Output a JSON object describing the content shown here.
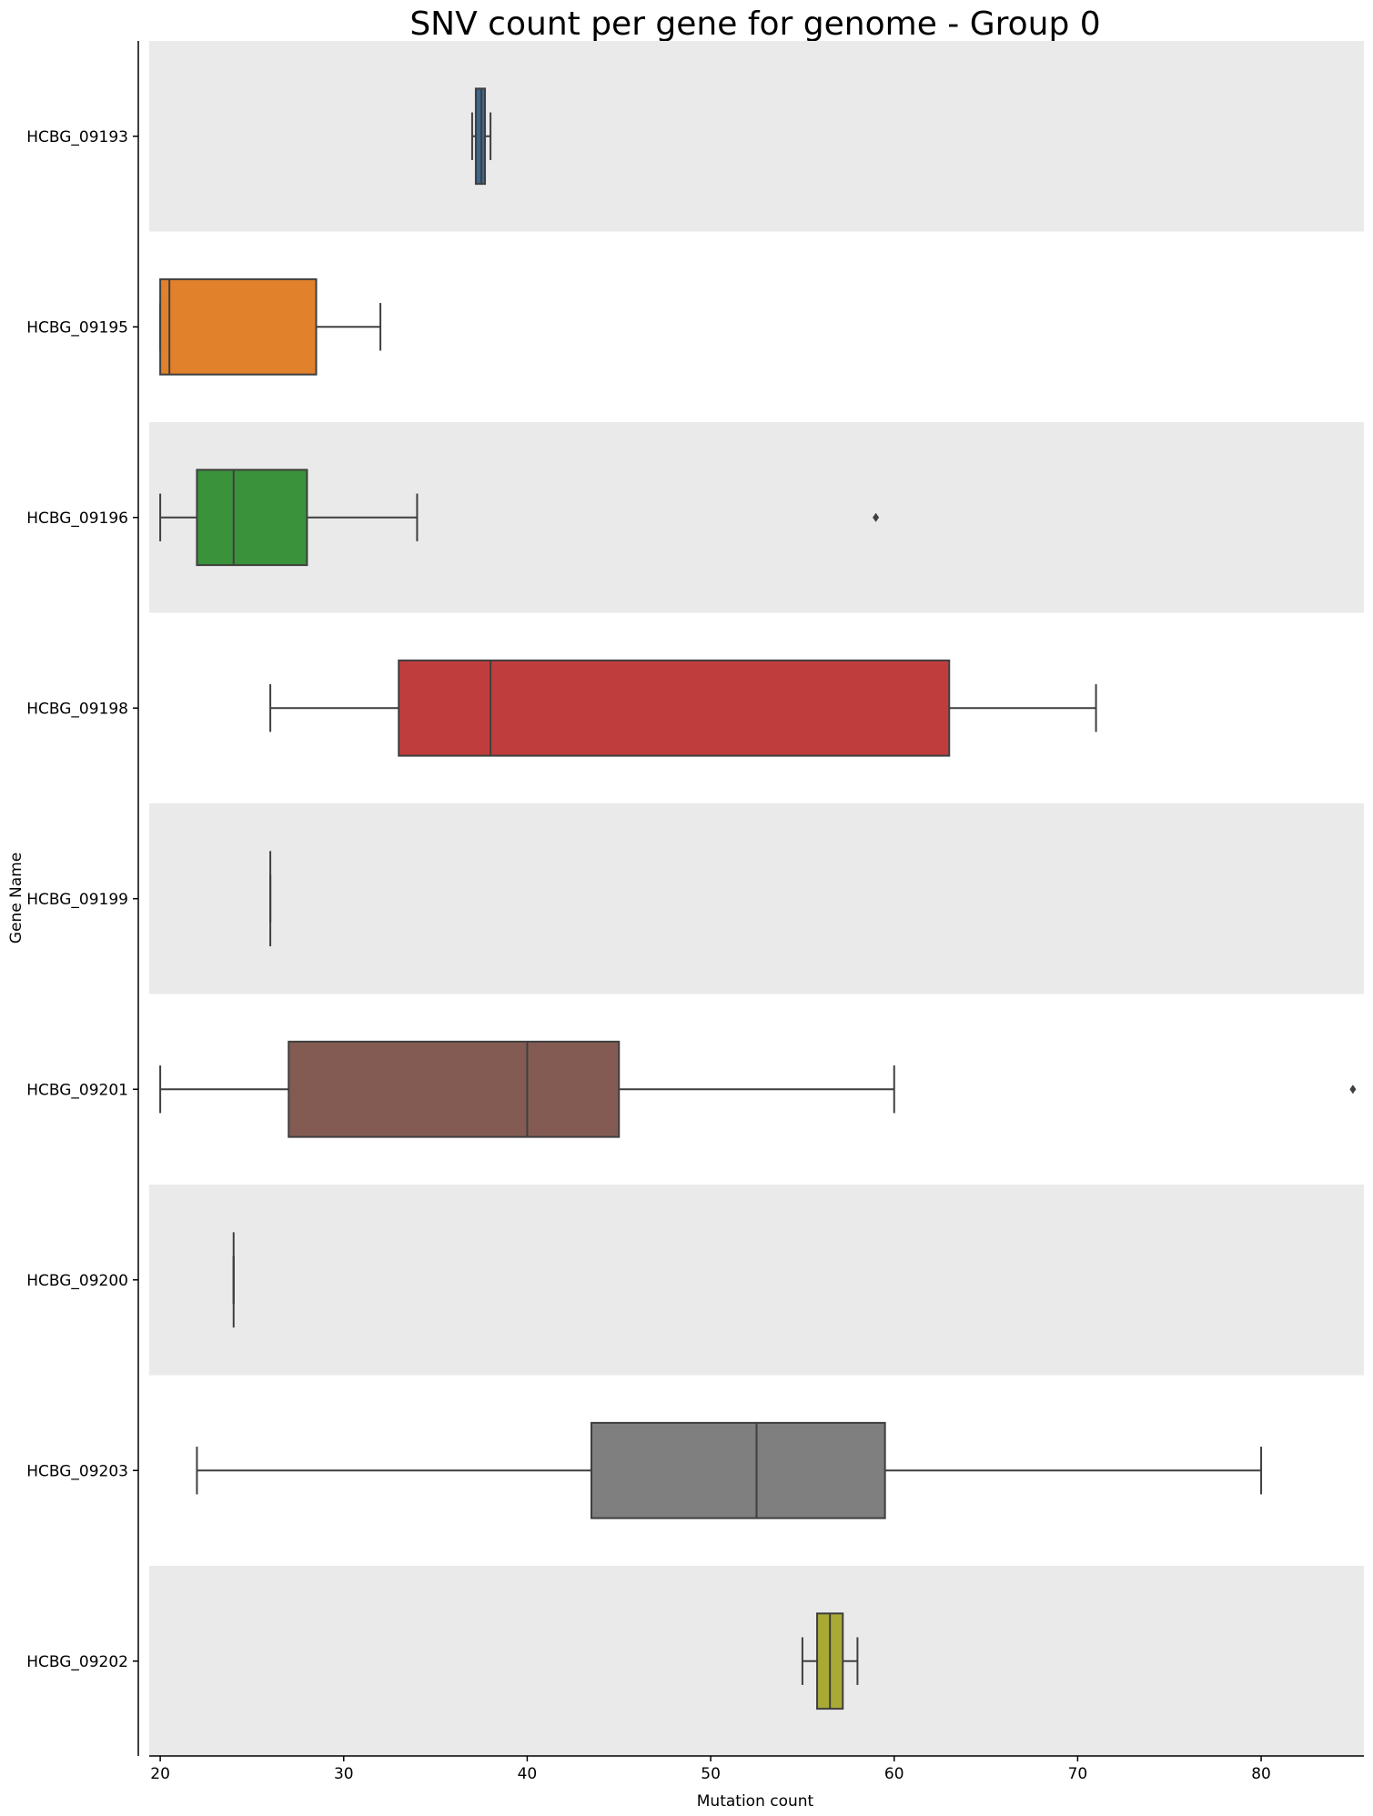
{
  "chart_data": {
    "type": "boxplot",
    "orientation": "horizontal",
    "title": "SNV count per gene for genome - Group 0",
    "xlabel": "Mutation count",
    "ylabel": "Gene Name",
    "xlim": [
      19.4,
      85.6
    ],
    "xticks": [
      20,
      30,
      40,
      50,
      60,
      70,
      80
    ],
    "grid": false,
    "band_colors": [
      "#eaeaea",
      "#ffffff"
    ],
    "line_color": "#3f3f3f",
    "boxes": [
      {
        "label": "HCBG_09193",
        "color": "#3a6791",
        "whislo": 37.0,
        "q1": 37.2,
        "med": 37.5,
        "q3": 37.7,
        "whishi": 38.0,
        "fliers": []
      },
      {
        "label": "HCBG_09195",
        "color": "#e1812c",
        "whislo": 20.0,
        "q1": 20.0,
        "med": 20.5,
        "q3": 28.5,
        "whishi": 32.0,
        "fliers": []
      },
      {
        "label": "HCBG_09196",
        "color": "#3a923a",
        "whislo": 20.0,
        "q1": 22.0,
        "med": 24.0,
        "q3": 28.0,
        "whishi": 34.0,
        "fliers": [
          59.0
        ]
      },
      {
        "label": "HCBG_09198",
        "color": "#c03d3e",
        "whislo": 26.0,
        "q1": 33.0,
        "med": 38.0,
        "q3": 63.0,
        "whishi": 71.0,
        "fliers": []
      },
      {
        "label": "HCBG_09199",
        "color": "#9372b2",
        "whislo": 26.0,
        "q1": 26.0,
        "med": 26.0,
        "q3": 26.0,
        "whishi": 26.0,
        "fliers": []
      },
      {
        "label": "HCBG_09201",
        "color": "#845b53",
        "whislo": 20.0,
        "q1": 27.0,
        "med": 40.0,
        "q3": 45.0,
        "whishi": 60.0,
        "fliers": [
          85.0
        ]
      },
      {
        "label": "HCBG_09200",
        "color": "#d684bd",
        "whislo": 24.0,
        "q1": 24.0,
        "med": 24.0,
        "q3": 24.0,
        "whishi": 24.0,
        "fliers": []
      },
      {
        "label": "HCBG_09203",
        "color": "#7f7f7f",
        "whislo": 22.0,
        "q1": 43.5,
        "med": 52.5,
        "q3": 59.5,
        "whishi": 80.0,
        "fliers": []
      },
      {
        "label": "HCBG_09202",
        "color": "#a9aa35",
        "whislo": 55.0,
        "q1": 55.8,
        "med": 56.5,
        "q3": 57.2,
        "whishi": 58.0,
        "fliers": []
      }
    ]
  }
}
